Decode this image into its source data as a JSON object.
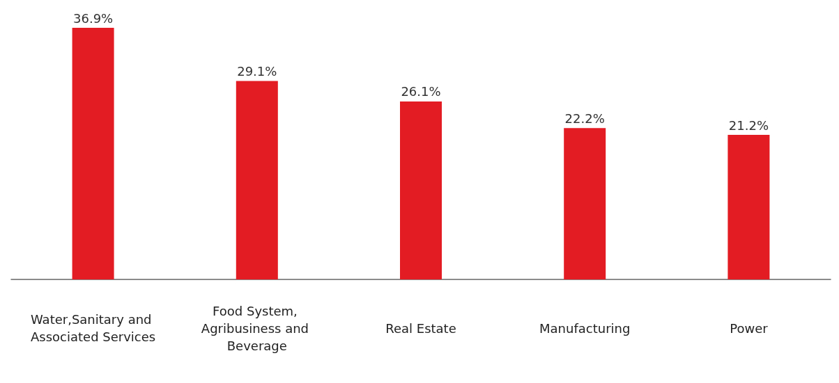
{
  "chart_data": {
    "type": "bar",
    "categories": [
      "Water,Sanitary and Associated Services",
      "Food System, Agribusiness and Beverage",
      "Real Estate",
      "Manufacturing",
      "Power"
    ],
    "values": [
      36.9,
      29.1,
      26.1,
      22.2,
      21.2
    ],
    "value_labels": [
      "36.9%",
      "29.1%",
      "26.1%",
      "22.2%",
      "21.2%"
    ],
    "color": "#e31b23"
  }
}
